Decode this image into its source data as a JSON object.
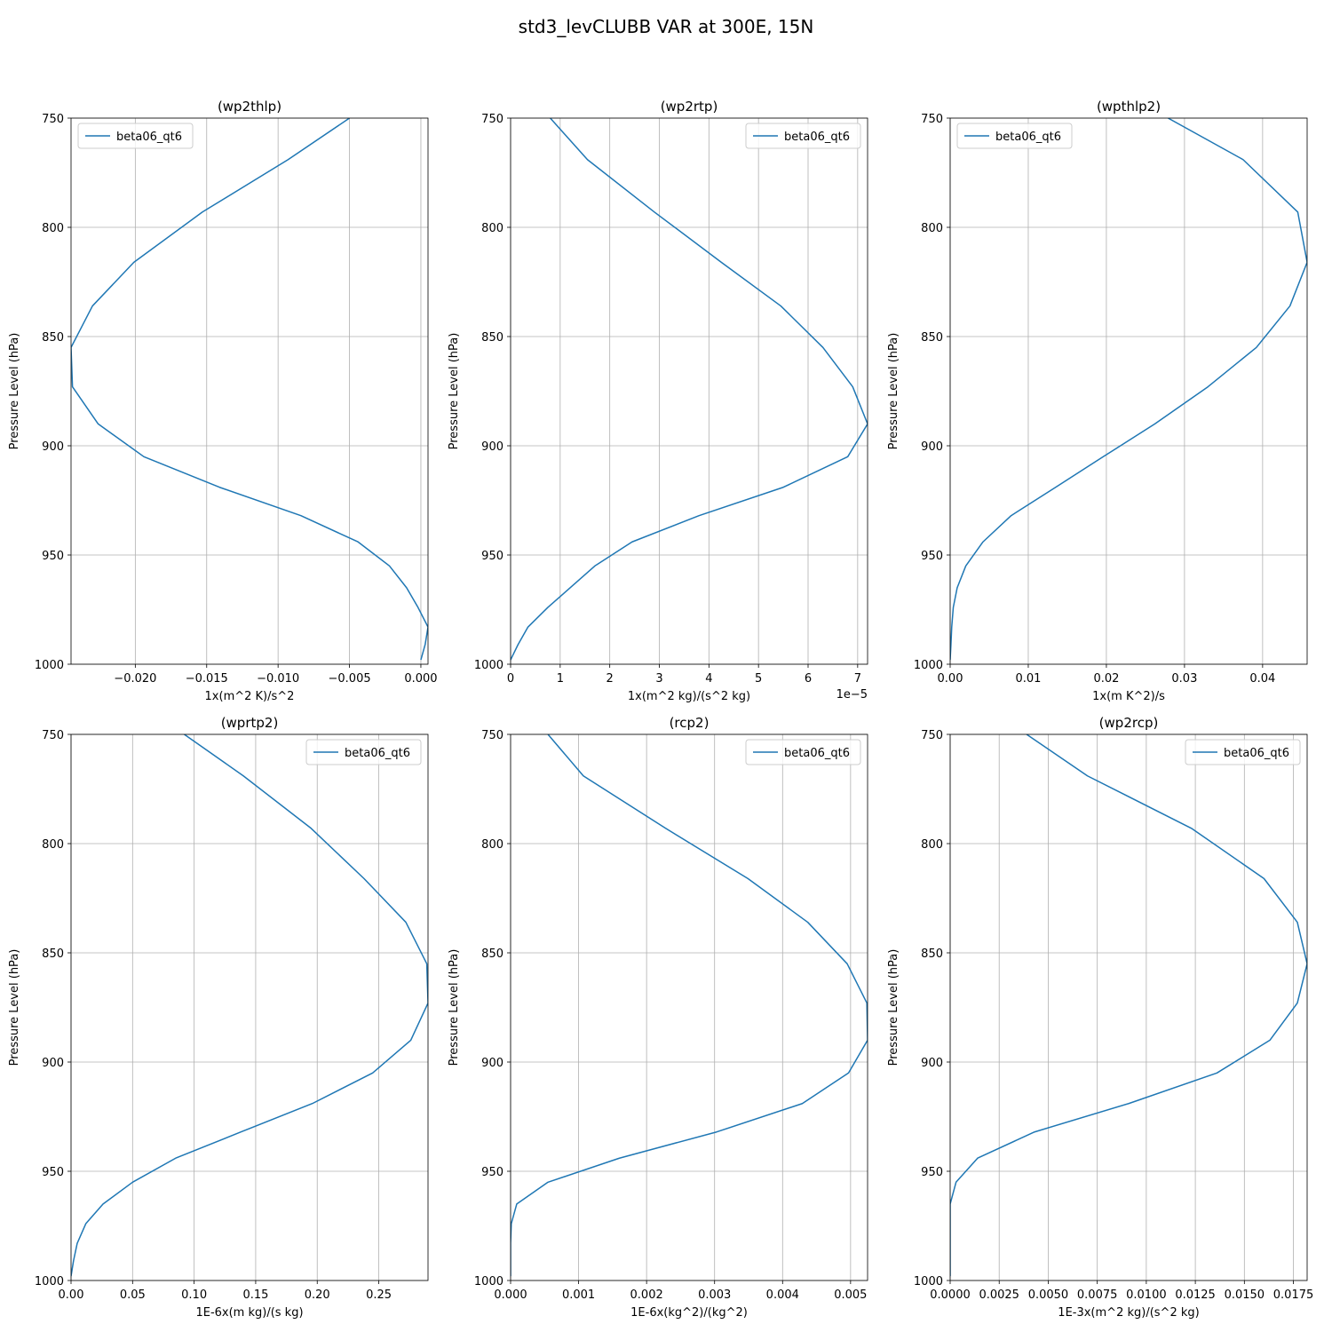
{
  "chart_data": {
    "title": "std3_levCLUBB VAR at 300E, 15N",
    "ylabel": "Pressure Level (hPa)",
    "ylim": [
      1000,
      750
    ],
    "yticks": [
      750,
      800,
      850,
      900,
      950,
      1000
    ],
    "pressure_levels": [
      750,
      769,
      793,
      816,
      836,
      855,
      873,
      890,
      905,
      919,
      932,
      944,
      955,
      965,
      974,
      983,
      991,
      998
    ],
    "grid": true,
    "series_color": "#1f77b4",
    "panels": [
      {
        "type": "line",
        "title": "(wp2thlp)",
        "xlabel": "1x(m^2 K)/s^2",
        "xlim": [
          -0.0245,
          0.0005
        ],
        "xticks": [
          -0.02,
          -0.015,
          -0.01,
          -0.005,
          0.0
        ],
        "xticklabels": [
          "−0.020",
          "−0.015",
          "−0.010",
          "−0.005",
          "0.000"
        ],
        "offset_text": "",
        "legend_loc": "upper-left",
        "series": [
          {
            "name": "beta06_qt6",
            "values": [
              -0.005,
              -0.0093,
              -0.0153,
              -0.0201,
              -0.023,
              -0.0245,
              -0.0244,
              -0.0226,
              -0.0194,
              -0.0141,
              -0.0084,
              -0.0044,
              -0.0022,
              -0.001,
              -0.0002,
              0.0005,
              0.0003,
              0.0
            ]
          }
        ]
      },
      {
        "type": "line",
        "title": "(wp2rtp)",
        "xlabel": "1x(m^2 kg)/(s^2 kg)",
        "xlim": [
          0,
          7.2
        ],
        "xticks": [
          0,
          1,
          2,
          3,
          4,
          5,
          6,
          7
        ],
        "xticklabels": [
          "0",
          "1",
          "2",
          "3",
          "4",
          "5",
          "6",
          "7"
        ],
        "offset_text": "1e−5",
        "legend_loc": "upper-right",
        "series": [
          {
            "name": "beta06_qt6",
            "values": [
              0.8,
              1.55,
              2.9,
              4.25,
              5.45,
              6.3,
              6.9,
              7.2,
              6.8,
              5.5,
              3.8,
              2.45,
              1.7,
              1.2,
              0.75,
              0.35,
              0.15,
              0.0
            ]
          }
        ]
      },
      {
        "type": "line",
        "title": "(wpthlp2)",
        "xlabel": "1x(m K^2)/s",
        "xlim": [
          0,
          0.0457
        ],
        "xticks": [
          0.0,
          0.01,
          0.02,
          0.03,
          0.04
        ],
        "xticklabels": [
          "0.00",
          "0.01",
          "0.02",
          "0.03",
          "0.04"
        ],
        "offset_text": "",
        "legend_loc": "upper-left",
        "series": [
          {
            "name": "beta06_qt6",
            "values": [
              0.0279,
              0.0375,
              0.0445,
              0.0457,
              0.0435,
              0.0392,
              0.033,
              0.0262,
              0.0196,
              0.0135,
              0.0078,
              0.0042,
              0.002,
              0.0009,
              0.0004,
              0.0002,
              0.0001,
              0.0
            ]
          }
        ]
      },
      {
        "type": "line",
        "title": "(wprtp2)",
        "xlabel": "1E-6x(m kg)/(s kg)",
        "xlim": [
          0,
          0.29
        ],
        "xticks": [
          0.0,
          0.05,
          0.1,
          0.15,
          0.2,
          0.25
        ],
        "xticklabels": [
          "0.00",
          "0.05",
          "0.10",
          "0.15",
          "0.20",
          "0.25"
        ],
        "offset_text": "",
        "legend_loc": "upper-right",
        "series": [
          {
            "name": "beta06_qt6",
            "values": [
              0.092,
              0.14,
              0.195,
              0.238,
              0.272,
              0.289,
              0.29,
              0.276,
              0.245,
              0.196,
              0.138,
              0.085,
              0.05,
              0.026,
              0.012,
              0.005,
              0.002,
              0.0
            ]
          }
        ]
      },
      {
        "type": "line",
        "title": "(rcp2)",
        "xlabel": "1E-6x(kg^2)/(kg^2)",
        "xlim": [
          0,
          0.00525
        ],
        "xticks": [
          0.0,
          0.001,
          0.002,
          0.003,
          0.004,
          0.005
        ],
        "xticklabels": [
          "0.000",
          "0.001",
          "0.002",
          "0.003",
          "0.004",
          "0.005"
        ],
        "offset_text": "",
        "legend_loc": "upper-right",
        "series": [
          {
            "name": "beta06_qt6",
            "values": [
              0.00055,
              0.00107,
              0.00228,
              0.00349,
              0.00437,
              0.00495,
              0.00524,
              0.00525,
              0.00497,
              0.00429,
              0.00303,
              0.0016,
              0.00055,
              9e-05,
              1e-05,
              0.0,
              0.0,
              0.0
            ]
          }
        ]
      },
      {
        "type": "line",
        "title": "(wp2rcp)",
        "xlabel": "1E-3x(m^2 kg)/(s^2 kg)",
        "xlim": [
          0,
          0.0182
        ],
        "xticks": [
          0.0,
          0.0025,
          0.005,
          0.0075,
          0.01,
          0.0125,
          0.015,
          0.0175
        ],
        "xticklabels": [
          "0.0000",
          "0.0025",
          "0.0050",
          "0.0075",
          "0.0100",
          "0.0125",
          "0.0150",
          "0.0175"
        ],
        "offset_text": "",
        "legend_loc": "upper-right",
        "series": [
          {
            "name": "beta06_qt6",
            "values": [
              0.0039,
              0.007,
              0.0123,
              0.016,
              0.0177,
              0.0182,
              0.0177,
              0.0163,
              0.0136,
              0.0091,
              0.0043,
              0.0014,
              0.0003,
              0.0,
              0.0,
              0.0,
              0.0,
              0.0
            ]
          }
        ]
      }
    ]
  }
}
